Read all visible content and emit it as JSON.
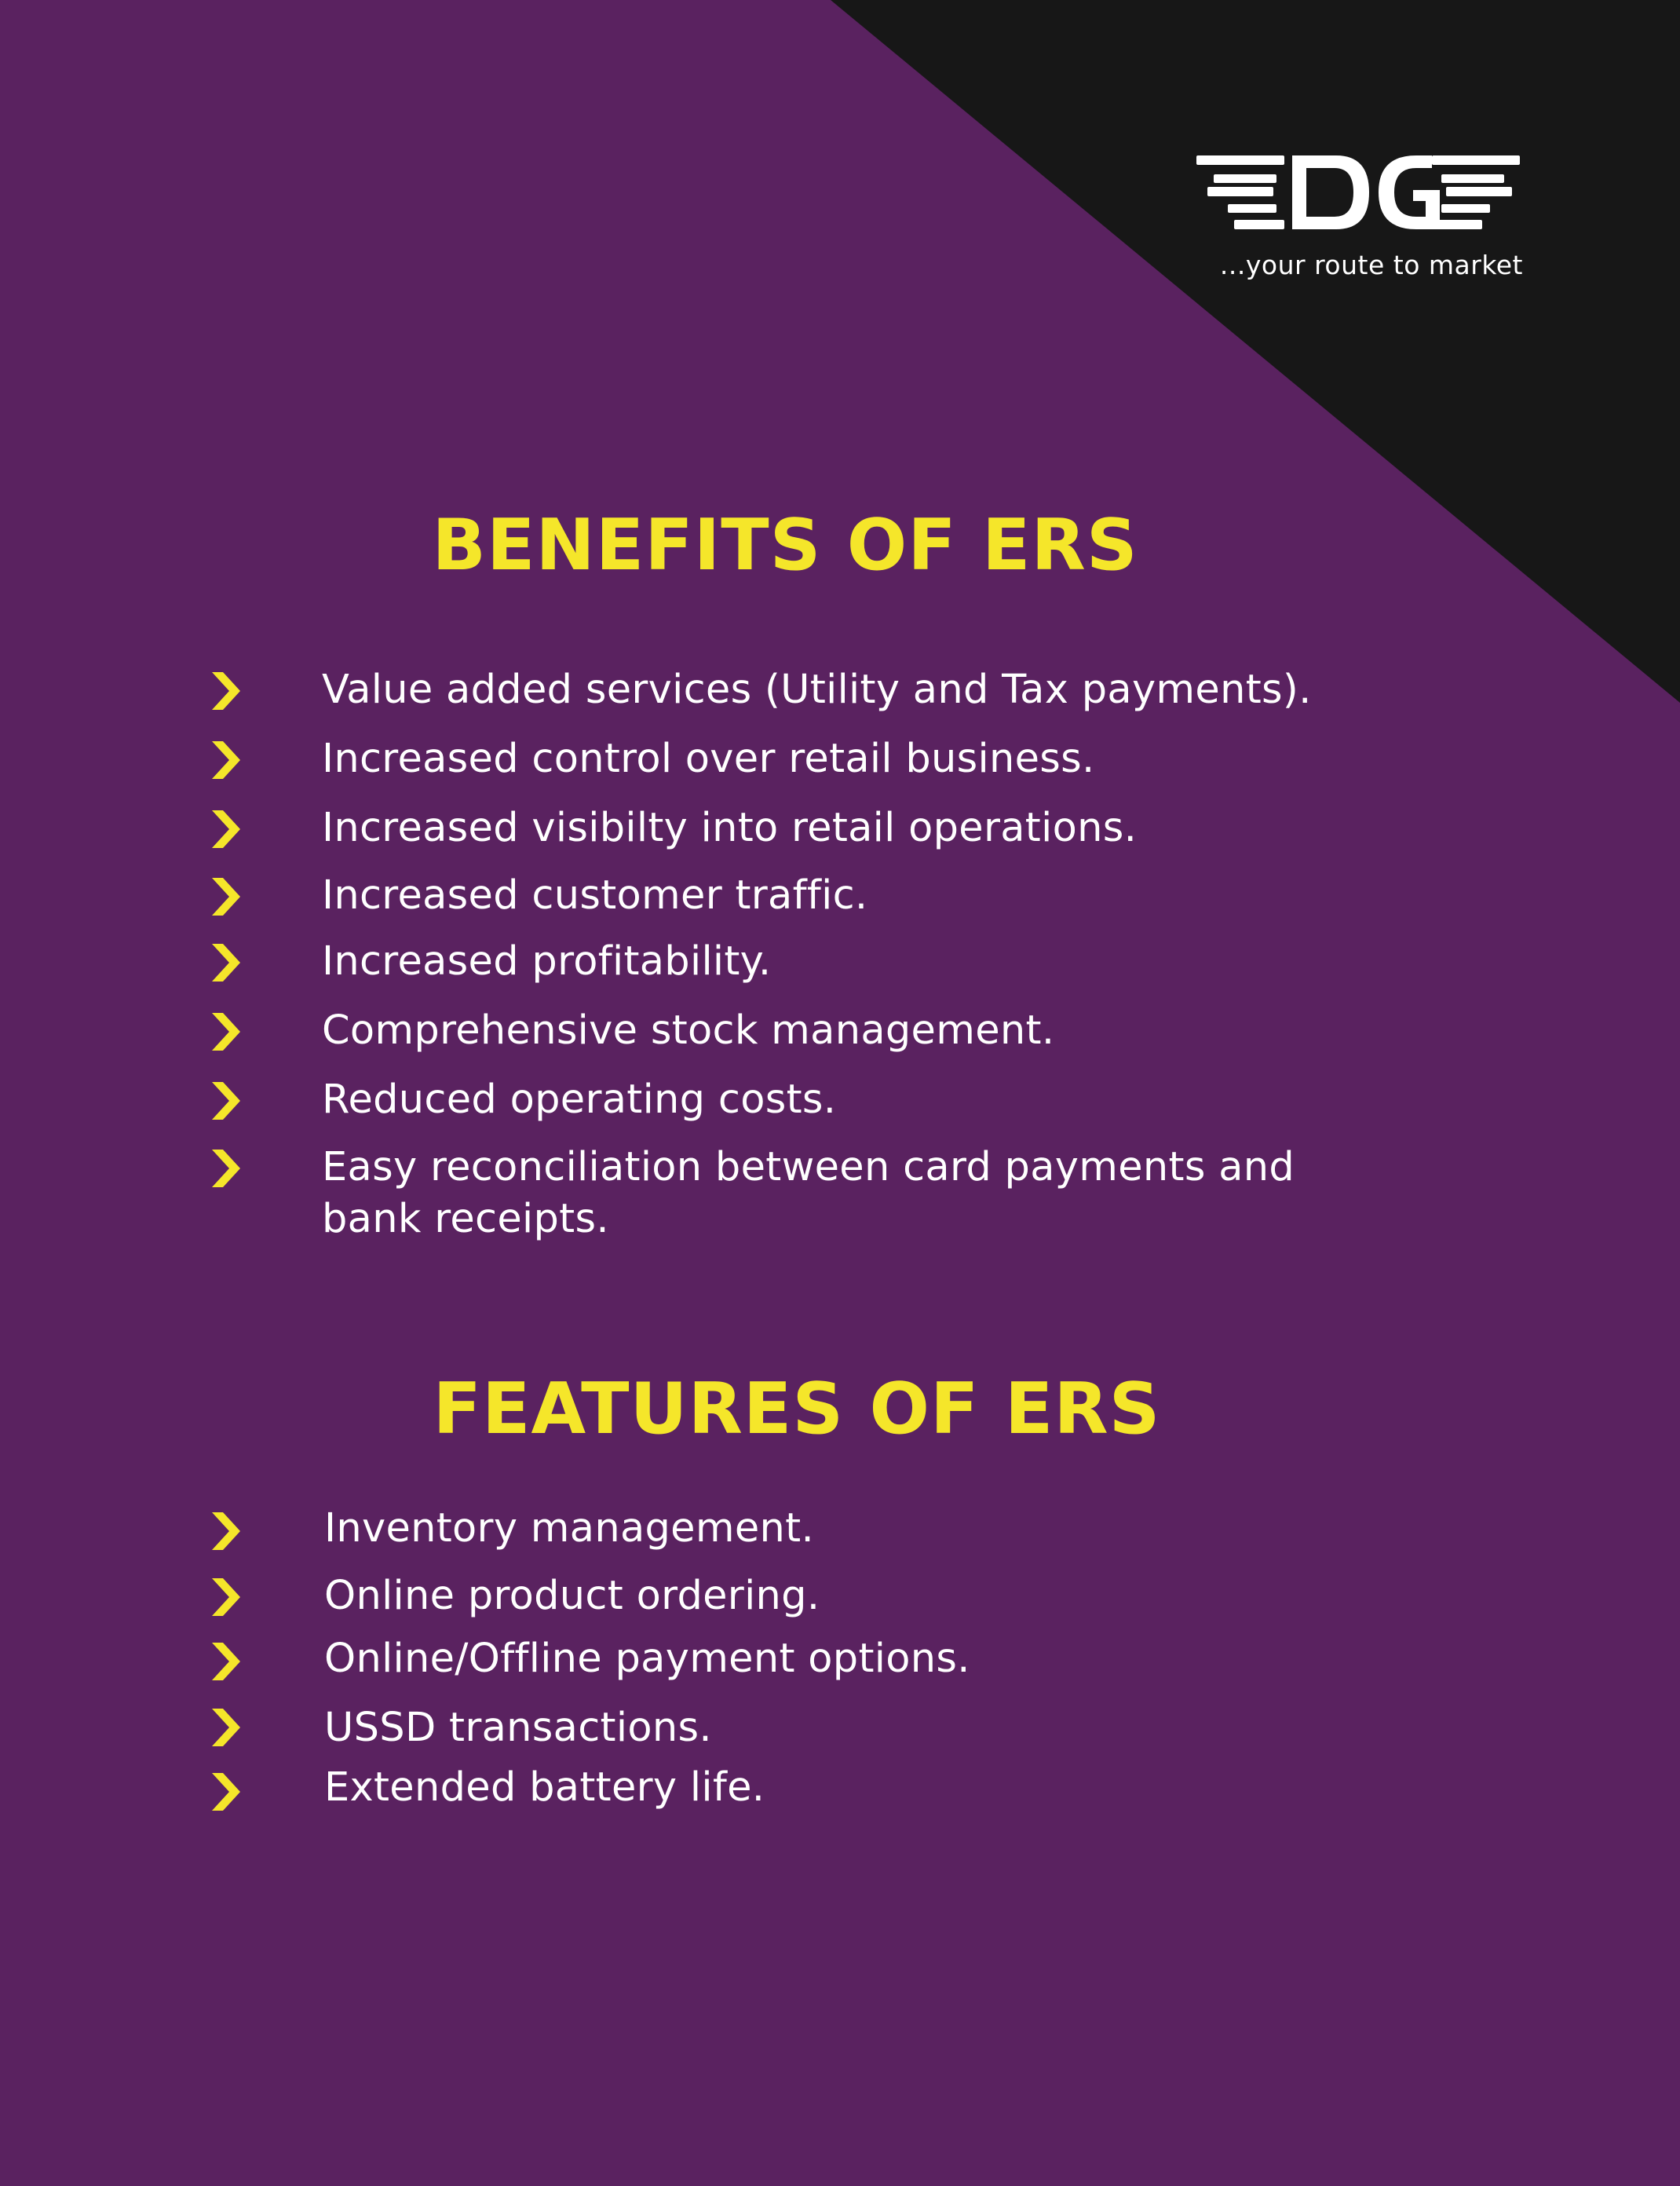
{
  "brand": {
    "logo_text": "EDGE",
    "tagline": "...your route to market"
  },
  "benefits": {
    "title": "BENEFITS OF ERS",
    "items": [
      "Value added services (Utility and Tax payments).",
      "Increased control over retail business.",
      "Increased visibilty into retail operations.",
      "Increased customer traffic.",
      "Increased profitability.",
      "Comprehensive stock management.",
      "Reduced operating costs.",
      "Easy reconciliation between card payments and bank receipts."
    ]
  },
  "features": {
    "title": "FEATURES OF ERS",
    "items": [
      "Inventory management.",
      "Online product ordering.",
      "Online/Offline payment options.",
      "USSD transactions.",
      "Extended battery life."
    ]
  },
  "colors": {
    "background": "#5a2260",
    "corner": "#171717",
    "accent": "#f5e62a",
    "text": "#ffffff"
  },
  "icons": {
    "bullet": "chevron-right-icon"
  }
}
